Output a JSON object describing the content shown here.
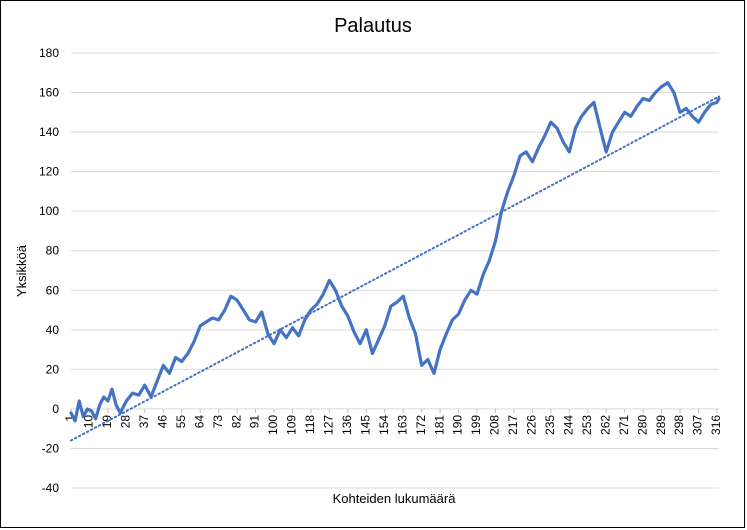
{
  "chart_data": {
    "type": "line",
    "title": "Palautus",
    "xlabel": "Kohteiden lukumäärä",
    "ylabel": "Yksikköä",
    "ylim": [
      -40,
      180
    ],
    "yticks": [
      -40,
      -20,
      0,
      20,
      40,
      60,
      80,
      100,
      120,
      140,
      160,
      180
    ],
    "x_range": [
      1,
      317
    ],
    "xtick_labels": [
      "1",
      "10",
      "19",
      "28",
      "37",
      "46",
      "55",
      "64",
      "73",
      "82",
      "91",
      "100",
      "109",
      "118",
      "127",
      "136",
      "145",
      "154",
      "163",
      "172",
      "181",
      "190",
      "199",
      "208",
      "217",
      "226",
      "235",
      "244",
      "253",
      "262",
      "271",
      "280",
      "289",
      "298",
      "307",
      "316"
    ],
    "grid": true,
    "series": [
      {
        "color": "#4472c4",
        "style": "solid",
        "x": [
          1,
          3,
          5,
          7,
          9,
          11,
          13,
          15,
          17,
          19,
          21,
          23,
          25,
          28,
          31,
          34,
          37,
          40,
          43,
          46,
          49,
          52,
          55,
          58,
          61,
          64,
          67,
          70,
          73,
          76,
          79,
          82,
          85,
          88,
          91,
          94,
          97,
          100,
          103,
          106,
          109,
          112,
          115,
          118,
          121,
          124,
          127,
          130,
          133,
          136,
          139,
          142,
          145,
          148,
          151,
          154,
          157,
          160,
          163,
          166,
          169,
          172,
          175,
          178,
          181,
          184,
          187,
          190,
          193,
          196,
          199,
          202,
          205,
          208,
          211,
          214,
          217,
          220,
          223,
          226,
          229,
          232,
          235,
          238,
          241,
          244,
          247,
          250,
          253,
          256,
          259,
          262,
          265,
          268,
          271,
          274,
          277,
          280,
          283,
          286,
          289,
          292,
          295,
          298,
          301,
          304,
          307,
          310,
          313,
          316,
          317
        ],
        "values": [
          -2,
          -6,
          4,
          -4,
          0,
          -1,
          -5,
          2,
          6,
          4,
          10,
          2,
          -2,
          4,
          8,
          7,
          12,
          6,
          14,
          22,
          18,
          26,
          24,
          28,
          34,
          42,
          44,
          46,
          45,
          50,
          57,
          55,
          50,
          45,
          44,
          49,
          38,
          33,
          40,
          36,
          41,
          37,
          45,
          50,
          53,
          58,
          65,
          60,
          52,
          47,
          39,
          33,
          40,
          28,
          35,
          42,
          52,
          54,
          57,
          46,
          38,
          22,
          25,
          18,
          30,
          38,
          45,
          48,
          55,
          60,
          58,
          68,
          75,
          85,
          100,
          110,
          118,
          128,
          130,
          125,
          132,
          138,
          145,
          142,
          135,
          130,
          142,
          148,
          152,
          155,
          142,
          130,
          140,
          145,
          150,
          148,
          153,
          157,
          156,
          160,
          163,
          165,
          160,
          150,
          152,
          148,
          145,
          150,
          154,
          155,
          157
        ]
      },
      {
        "color": "#4472c4",
        "style": "dotted",
        "trendline": true,
        "x": [
          1,
          317
        ],
        "values": [
          -16,
          158
        ]
      }
    ]
  }
}
